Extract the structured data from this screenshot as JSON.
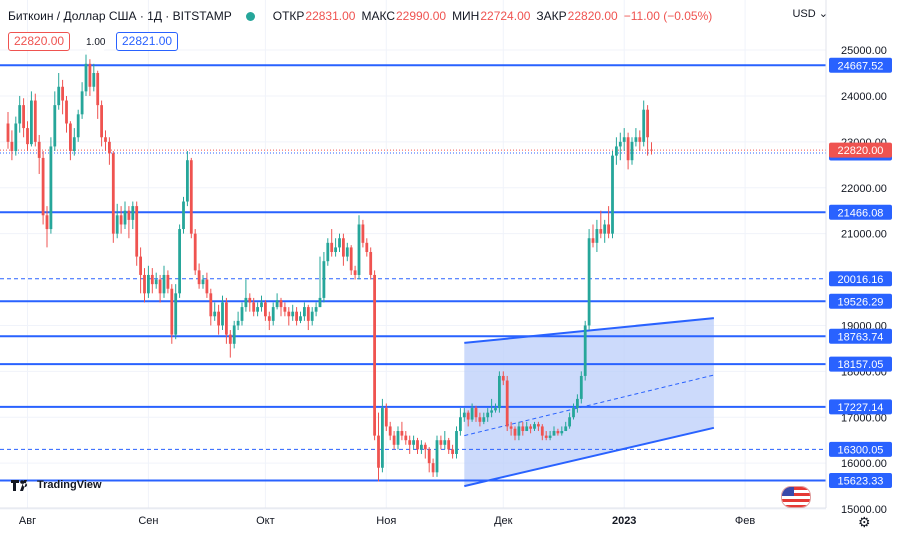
{
  "header": {
    "symbol": "Биткоин / Доллар США · 1Д · BITSTAMP",
    "open_label": "ОТКР",
    "open_value": "22831.00",
    "high_label": "МАКС",
    "high_value": "22990.00",
    "low_label": "МИН",
    "low_value": "22724.00",
    "close_label": "ЗАКР",
    "close_value": "22820.00",
    "change": "−11.00 (−0.05%)",
    "sell_price": "22820.00",
    "spread": "1.00",
    "buy_price": "22821.00",
    "currency": "USD"
  },
  "branding": {
    "logo_text": "TradingView",
    "logo_icon": "tradingview-logo-icon",
    "settings_icon": "gear-icon",
    "flag_icon": "us-flag-icon"
  },
  "colors": {
    "up": "#26a69a",
    "down": "#ef5350",
    "level": "#2962ff",
    "channel_fill": "#bbcdfa",
    "current_price_bg": "#ef5350"
  },
  "chart_data": {
    "type": "candlestick",
    "ylim": [
      14500,
      25300
    ],
    "y_ticks": [
      15000,
      16000,
      17000,
      18000,
      19000,
      21000,
      22000,
      23000,
      24000,
      25000
    ],
    "x_labels": [
      {
        "label": "Авг",
        "index": 5
      },
      {
        "label": "Сен",
        "index": 36
      },
      {
        "label": "Окт",
        "index": 66
      },
      {
        "label": "Ноя",
        "index": 97
      },
      {
        "label": "Дек",
        "index": 127
      },
      {
        "label": "2023",
        "index": 158
      },
      {
        "label": "Фев",
        "index": 189
      }
    ],
    "levels": [
      {
        "price": 24667.52,
        "style": "solid"
      },
      {
        "price": 22756.06,
        "style": "dotted"
      },
      {
        "price": 21466.08,
        "style": "solid"
      },
      {
        "price": 20016.16,
        "style": "dashed"
      },
      {
        "price": 19526.29,
        "style": "solid"
      },
      {
        "price": 18763.74,
        "style": "solid"
      },
      {
        "price": 18157.05,
        "style": "solid"
      },
      {
        "price": 17227.14,
        "style": "solid"
      },
      {
        "price": 16300.05,
        "style": "dashed"
      },
      {
        "price": 15623.33,
        "style": "solid"
      }
    ],
    "current_price": 22820.0,
    "channel": {
      "upper": [
        [
          117,
          18620
        ],
        [
          181,
          19160
        ]
      ],
      "lower": [
        [
          117,
          15500
        ],
        [
          181,
          16770
        ]
      ],
      "middle": [
        [
          117,
          16600
        ],
        [
          181,
          17920
        ]
      ]
    },
    "candles": [
      [
        23400,
        23000,
        23650,
        22850
      ],
      [
        23000,
        22800,
        23250,
        22600
      ],
      [
        22800,
        23400,
        23550,
        22700
      ],
      [
        23400,
        23800,
        24000,
        23200
      ],
      [
        23800,
        23300,
        23950,
        23100
      ],
      [
        23300,
        22950,
        23450,
        22800
      ],
      [
        22950,
        23900,
        24100,
        22900
      ],
      [
        23900,
        23000,
        24050,
        22900
      ],
      [
        23000,
        22650,
        23150,
        22300
      ],
      [
        22650,
        21400,
        22800,
        21200
      ],
      [
        21400,
        21100,
        21600,
        20700
      ],
      [
        21100,
        22900,
        23100,
        21000
      ],
      [
        22900,
        23800,
        24100,
        22800
      ],
      [
        23800,
        24200,
        24500,
        23700
      ],
      [
        24200,
        23900,
        24350,
        23600
      ],
      [
        23900,
        23400,
        24000,
        23200
      ],
      [
        23400,
        22800,
        23450,
        22600
      ],
      [
        22800,
        23100,
        23300,
        22700
      ],
      [
        23100,
        23600,
        23700,
        23000
      ],
      [
        23600,
        24100,
        24300,
        23500
      ],
      [
        24100,
        24700,
        24900,
        24000
      ],
      [
        24700,
        24200,
        24800,
        24000
      ],
      [
        24200,
        24500,
        24700,
        24100
      ],
      [
        24500,
        23800,
        24550,
        23500
      ],
      [
        23800,
        23100,
        23900,
        22900
      ],
      [
        23100,
        23000,
        23250,
        22800
      ],
      [
        23000,
        22750,
        23100,
        22500
      ],
      [
        22750,
        21000,
        22800,
        20800
      ],
      [
        21000,
        21400,
        21650,
        20900
      ],
      [
        21400,
        21200,
        21600,
        21000
      ],
      [
        21200,
        21500,
        21700,
        21100
      ],
      [
        21500,
        21300,
        21600,
        20900
      ],
      [
        21300,
        21600,
        21700,
        21100
      ],
      [
        21600,
        20500,
        21700,
        20300
      ],
      [
        20500,
        20100,
        20700,
        19700
      ],
      [
        20100,
        19700,
        20250,
        19500
      ],
      [
        19700,
        20100,
        20300,
        19600
      ],
      [
        20100,
        19900,
        20250,
        19700
      ],
      [
        19900,
        20000,
        20150,
        19800
      ],
      [
        20000,
        19700,
        20100,
        19500
      ],
      [
        19700,
        20100,
        20300,
        19600
      ],
      [
        20100,
        19800,
        20200,
        19700
      ],
      [
        19800,
        18800,
        19900,
        18600
      ],
      [
        18800,
        19700,
        19900,
        18700
      ],
      [
        19700,
        21100,
        21200,
        19600
      ],
      [
        21100,
        21700,
        21800,
        21000
      ],
      [
        21700,
        22600,
        22800,
        21600
      ],
      [
        22600,
        21000,
        22650,
        20900
      ],
      [
        21000,
        20200,
        21100,
        20100
      ],
      [
        20200,
        19900,
        20350,
        19800
      ],
      [
        19900,
        20000,
        20100,
        19800
      ],
      [
        20000,
        19700,
        20150,
        19600
      ],
      [
        19700,
        19200,
        19800,
        19000
      ],
      [
        19200,
        19300,
        19500,
        19100
      ],
      [
        19300,
        19000,
        19450,
        18800
      ],
      [
        19000,
        19500,
        19650,
        18900
      ],
      [
        19500,
        18800,
        19600,
        18600
      ],
      [
        18800,
        18600,
        18900,
        18300
      ],
      [
        18600,
        19000,
        19100,
        18500
      ],
      [
        19000,
        19100,
        19300,
        18900
      ],
      [
        19100,
        19400,
        19500,
        19000
      ],
      [
        19400,
        19600,
        20000,
        19300
      ],
      [
        19600,
        19500,
        19700,
        19300
      ],
      [
        19500,
        19300,
        19600,
        19200
      ],
      [
        19300,
        19400,
        19500,
        19200
      ],
      [
        19400,
        19500,
        19650,
        19300
      ],
      [
        19500,
        19200,
        19550,
        19100
      ],
      [
        19200,
        19100,
        19300,
        18900
      ],
      [
        19100,
        19400,
        19500,
        19000
      ],
      [
        19400,
        19550,
        19700,
        19350
      ],
      [
        19550,
        19400,
        19600,
        19200
      ],
      [
        19400,
        19300,
        19500,
        19200
      ],
      [
        19300,
        19200,
        19400,
        19000
      ],
      [
        19200,
        19300,
        19450,
        19100
      ],
      [
        19300,
        19100,
        19400,
        19000
      ],
      [
        19100,
        19200,
        19300,
        19050
      ],
      [
        19200,
        19400,
        19500,
        19100
      ],
      [
        19400,
        19100,
        19450,
        18900
      ],
      [
        19100,
        19300,
        19400,
        19000
      ],
      [
        19300,
        19400,
        19500,
        19200
      ],
      [
        19400,
        19600,
        20500,
        19400
      ],
      [
        19600,
        20400,
        20600,
        19500
      ],
      [
        20400,
        20800,
        20900,
        20300
      ],
      [
        20800,
        20600,
        21100,
        20500
      ],
      [
        20600,
        20700,
        20900,
        20500
      ],
      [
        20700,
        20900,
        21000,
        20600
      ],
      [
        20900,
        20500,
        21000,
        20300
      ],
      [
        20500,
        20700,
        20800,
        20400
      ],
      [
        20700,
        20200,
        20750,
        20100
      ],
      [
        20200,
        20100,
        20300,
        20000
      ],
      [
        20100,
        21200,
        21400,
        20000
      ],
      [
        21200,
        20800,
        21300,
        20700
      ],
      [
        20800,
        20600,
        20900,
        20500
      ],
      [
        20600,
        20100,
        20700,
        20000
      ],
      [
        20100,
        16600,
        20200,
        16500
      ],
      [
        16600,
        15900,
        17100,
        15600
      ],
      [
        15900,
        17200,
        17400,
        15800
      ],
      [
        17200,
        16800,
        17300,
        16700
      ],
      [
        16800,
        16600,
        16900,
        16500
      ],
      [
        16600,
        16400,
        16700,
        16300
      ],
      [
        16400,
        16700,
        16800,
        16300
      ],
      [
        16700,
        16600,
        16900,
        16500
      ],
      [
        16600,
        16500,
        16700,
        16400
      ],
      [
        16500,
        16400,
        16600,
        16200
      ],
      [
        16400,
        16500,
        16600,
        16300
      ],
      [
        16500,
        16300,
        16550,
        16200
      ],
      [
        16300,
        16400,
        16500,
        16200
      ],
      [
        16400,
        16300,
        16450,
        16100
      ],
      [
        16300,
        16000,
        16350,
        15800
      ],
      [
        16000,
        15800,
        16100,
        15700
      ],
      [
        15800,
        16500,
        16600,
        15700
      ],
      [
        16500,
        16400,
        16600,
        16300
      ],
      [
        16400,
        16500,
        16700,
        16300
      ],
      [
        16500,
        16300,
        16550,
        16200
      ],
      [
        16300,
        16200,
        16400,
        16100
      ],
      [
        16200,
        16700,
        16800,
        16100
      ],
      [
        16700,
        17000,
        17200,
        16600
      ],
      [
        17000,
        17100,
        17200,
        16900
      ],
      [
        17100,
        16950,
        17150,
        16800
      ],
      [
        16950,
        17200,
        17300,
        16900
      ],
      [
        17200,
        17000,
        17250,
        16900
      ],
      [
        17000,
        16900,
        17100,
        16800
      ],
      [
        16900,
        17000,
        17100,
        16850
      ],
      [
        17000,
        17100,
        17200,
        16900
      ],
      [
        17100,
        17150,
        17400,
        17000
      ],
      [
        17150,
        17200,
        17300,
        17100
      ],
      [
        17200,
        17900,
        18000,
        17100
      ],
      [
        17900,
        17800,
        18000,
        17700
      ],
      [
        17800,
        16800,
        17900,
        16700
      ],
      [
        16800,
        16750,
        16900,
        16600
      ],
      [
        16750,
        16600,
        16800,
        16500
      ],
      [
        16600,
        16800,
        16900,
        16500
      ],
      [
        16800,
        16700,
        16900,
        16600
      ],
      [
        16700,
        16800,
        16900,
        16700
      ],
      [
        16800,
        16750,
        16850,
        16650
      ],
      [
        16750,
        16850,
        16900,
        16700
      ],
      [
        16850,
        16800,
        16900,
        16700
      ],
      [
        16800,
        16600,
        16850,
        16500
      ],
      [
        16600,
        16550,
        16700,
        16500
      ],
      [
        16550,
        16600,
        16700,
        16500
      ],
      [
        16600,
        16700,
        16800,
        16600
      ],
      [
        16700,
        16650,
        16750,
        16600
      ],
      [
        16650,
        16700,
        16800,
        16600
      ],
      [
        16700,
        16800,
        16900,
        16700
      ],
      [
        16800,
        17000,
        17100,
        16750
      ],
      [
        17000,
        17200,
        17300,
        16950
      ],
      [
        17200,
        17400,
        17500,
        17100
      ],
      [
        17400,
        17900,
        18000,
        17300
      ],
      [
        17900,
        19000,
        19100,
        17800
      ],
      [
        19000,
        20900,
        21100,
        18900
      ],
      [
        20900,
        20800,
        21200,
        20700
      ],
      [
        20800,
        21100,
        21300,
        20600
      ],
      [
        21100,
        21000,
        21500,
        20900
      ],
      [
        21000,
        21200,
        21300,
        20800
      ],
      [
        21200,
        21000,
        21600,
        20900
      ],
      [
        21000,
        22700,
        22800,
        20900
      ],
      [
        22700,
        22900,
        23100,
        22500
      ],
      [
        22900,
        23000,
        23200,
        22600
      ],
      [
        23000,
        23100,
        23300,
        22800
      ],
      [
        23100,
        22600,
        23200,
        22400
      ],
      [
        22600,
        23000,
        23100,
        22500
      ],
      [
        23000,
        23100,
        23300,
        22900
      ],
      [
        23100,
        23000,
        23250,
        22800
      ],
      [
        23000,
        23700,
        23900,
        22900
      ],
      [
        23700,
        23100,
        23800,
        22700
      ],
      [
        22831,
        22820,
        22990,
        22724
      ]
    ]
  }
}
